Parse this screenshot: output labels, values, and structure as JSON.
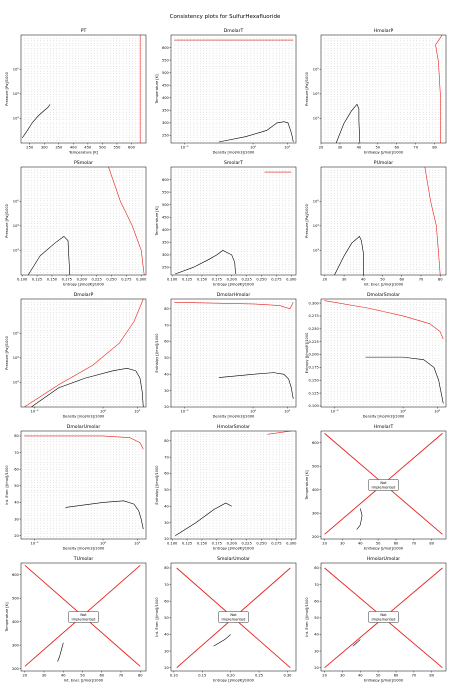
{
  "figure": {
    "title": "Consistency plots for SulfurHexafluoride"
  },
  "colors": {
    "boundary": "#e8201c",
    "grid": "#000000",
    "saturation": "#000000",
    "frame": "#000000",
    "not_implemented_box": "#ffffff"
  },
  "chart_data": [
    {
      "type": "scatter",
      "title": "PT",
      "xlabel": "Temperature [K]",
      "ylabel": "Pressure [Pa]/1000",
      "xlim": [
        220,
        650
      ],
      "ylim": [
        100,
        2500000
      ],
      "yscale": "log",
      "implemented": true,
      "xticks": [
        "250",
        "300",
        "350",
        "400",
        "450",
        "500",
        "550",
        "600"
      ],
      "yticks": [
        "10³",
        "10⁴",
        "10⁵"
      ],
      "saturation_curve": [
        [
          224,
          160
        ],
        [
          240,
          300
        ],
        [
          260,
          700
        ],
        [
          280,
          1300
        ],
        [
          300,
          2100
        ],
        [
          315,
          3000
        ],
        [
          319,
          3750
        ]
      ],
      "boundary_curve": [
        [
          630,
          100
        ],
        [
          630,
          1000
        ],
        [
          630,
          100000
        ],
        [
          630,
          2500000
        ]
      ]
    },
    {
      "type": "scatter",
      "title": "DmolarT",
      "xlabel": "Density [mol/m3]/1000",
      "ylabel": "Temperature [K]",
      "xlim": [
        0.004,
        18
      ],
      "ylim": [
        220,
        650
      ],
      "xscale": "log",
      "implemented": true,
      "xticks": [
        "10⁻²",
        "10⁰",
        "10¹"
      ],
      "yticks": [
        "250",
        "300",
        "350",
        "400",
        "450",
        "500",
        "550",
        "600"
      ],
      "saturation_curve": [
        [
          0.1,
          224
        ],
        [
          0.6,
          245
        ],
        [
          2.5,
          270
        ],
        [
          5.0,
          300
        ],
        [
          8.0,
          305
        ],
        [
          10.5,
          300
        ],
        [
          12.5,
          270
        ],
        [
          14,
          245
        ],
        [
          15,
          224
        ]
      ],
      "boundary_curve": [
        [
          0.005,
          630
        ],
        [
          1,
          630
        ],
        [
          10,
          630
        ],
        [
          15,
          630
        ]
      ]
    },
    {
      "type": "scatter",
      "title": "HmolarP",
      "xlabel": "Enthalpy [J/mol]/1000",
      "ylabel": "Pressure [Pa]/1000",
      "xlim": [
        20,
        86
      ],
      "ylim": [
        100,
        2500000
      ],
      "yscale": "log",
      "implemented": true,
      "xticks": [
        "20",
        "30",
        "40",
        "50",
        "60",
        "70",
        "80"
      ],
      "yticks": [
        "10³",
        "10⁴",
        "10⁵"
      ],
      "saturation_curve": [
        [
          28,
          100
        ],
        [
          32,
          600
        ],
        [
          36,
          2000
        ],
        [
          39,
          3750
        ],
        [
          40,
          2500
        ],
        [
          40,
          800
        ],
        [
          40.5,
          100
        ]
      ],
      "boundary_curve": [
        [
          83,
          100
        ],
        [
          83,
          10000
        ],
        [
          82,
          200000
        ],
        [
          80.5,
          1000000
        ],
        [
          84,
          2500000
        ]
      ]
    },
    {
      "type": "scatter",
      "title": "PSmolar",
      "xlabel": "Entropy [J/mol/K]/1000",
      "ylabel": "Pressure [Pa]/1000",
      "xlim": [
        0.098,
        0.308
      ],
      "ylim": [
        100,
        2500000
      ],
      "yscale": "log",
      "implemented": true,
      "xticks": [
        "0.100",
        "0.125",
        "0.150",
        "0.175",
        "0.200",
        "0.225",
        "0.250",
        "0.275",
        "0.300"
      ],
      "yticks": [
        "10³",
        "10⁴",
        "10⁵"
      ],
      "saturation_curve": [
        [
          0.11,
          100
        ],
        [
          0.13,
          600
        ],
        [
          0.155,
          2000
        ],
        [
          0.17,
          3750
        ],
        [
          0.177,
          2500
        ],
        [
          0.178,
          800
        ],
        [
          0.18,
          100
        ]
      ],
      "boundary_curve": [
        [
          0.245,
          2500000
        ],
        [
          0.265,
          100000
        ],
        [
          0.285,
          10000
        ],
        [
          0.3,
          1000
        ],
        [
          0.305,
          100
        ]
      ]
    },
    {
      "type": "scatter",
      "title": "SmolarT",
      "xlabel": "Entropy [J/mol/K]/1000",
      "ylabel": "Temperature [K]",
      "xlim": [
        0.098,
        0.308
      ],
      "ylim": [
        220,
        650
      ],
      "implemented": true,
      "xticks": [
        "0.100",
        "0.125",
        "0.150",
        "0.175",
        "0.200",
        "0.225",
        "0.250",
        "0.275",
        "0.300"
      ],
      "yticks": [
        "250",
        "300",
        "350",
        "400",
        "450",
        "500",
        "550",
        "600"
      ],
      "saturation_curve": [
        [
          0.105,
          224
        ],
        [
          0.135,
          250
        ],
        [
          0.16,
          280
        ],
        [
          0.175,
          300
        ],
        [
          0.185,
          318
        ],
        [
          0.2,
          300
        ],
        [
          0.205,
          270
        ],
        [
          0.206,
          240
        ],
        [
          0.207,
          224
        ]
      ],
      "boundary_curve": [
        [
          0.255,
          630
        ],
        [
          0.3,
          630
        ]
      ]
    },
    {
      "type": "scatter",
      "title": "PUmolar",
      "xlabel": "Int. Ener. [J/mol]/1000",
      "ylabel": "Pressure [Pa]/1000",
      "xlim": [
        18,
        83
      ],
      "ylim": [
        100,
        2500000
      ],
      "yscale": "log",
      "implemented": true,
      "xticks": [
        "20",
        "30",
        "40",
        "50",
        "60",
        "70",
        "80"
      ],
      "yticks": [
        "10³",
        "10⁴",
        "10⁵"
      ],
      "saturation_curve": [
        [
          25,
          100
        ],
        [
          30,
          600
        ],
        [
          34,
          2000
        ],
        [
          38,
          3750
        ],
        [
          39,
          2500
        ],
        [
          40,
          800
        ],
        [
          40,
          100
        ]
      ],
      "boundary_curve": [
        [
          72,
          2500000
        ],
        [
          75,
          100000
        ],
        [
          78,
          10000
        ],
        [
          79,
          1000
        ],
        [
          80,
          100
        ]
      ]
    },
    {
      "type": "scatter",
      "title": "DmolarP",
      "xlabel": "Density [mol/m3]/1000",
      "ylabel": "Pressure [Pa]/1000",
      "xlim": [
        0.004,
        18
      ],
      "ylim": [
        100,
        2500000
      ],
      "xscale": "log",
      "yscale": "log",
      "implemented": true,
      "xticks": [
        "10⁻²",
        "10⁰",
        "10¹"
      ],
      "yticks": [
        "10³",
        "10⁴",
        "10⁵"
      ],
      "saturation_curve": [
        [
          0.008,
          100
        ],
        [
          0.05,
          600
        ],
        [
          0.3,
          1500
        ],
        [
          2,
          3000
        ],
        [
          5,
          3750
        ],
        [
          9,
          3000
        ],
        [
          12,
          1500
        ],
        [
          14,
          400
        ],
        [
          15,
          100
        ]
      ],
      "boundary_curve": [
        [
          0.005,
          100
        ],
        [
          0.05,
          800
        ],
        [
          0.5,
          5000
        ],
        [
          3,
          40000
        ],
        [
          8,
          300000
        ],
        [
          15,
          2500000
        ]
      ]
    },
    {
      "type": "scatter",
      "title": "DmolarHmolar",
      "xlabel": "Density [mol/m3]/1000",
      "ylabel": "Enthalpy [J/mol]/1000",
      "xlim": [
        0.004,
        18
      ],
      "ylim": [
        20,
        86
      ],
      "xscale": "log",
      "implemented": true,
      "xticks": [
        "10⁻²",
        "10⁰",
        "10¹"
      ],
      "yticks": [
        "20",
        "30",
        "40",
        "50",
        "60",
        "70",
        "80"
      ],
      "saturation_curve": [
        [
          0.1,
          38
        ],
        [
          1,
          40
        ],
        [
          4,
          41
        ],
        [
          8,
          40
        ],
        [
          11,
          37
        ],
        [
          13,
          32
        ],
        [
          15,
          25
        ]
      ],
      "boundary_curve": [
        [
          0.005,
          84
        ],
        [
          1,
          83
        ],
        [
          6,
          82
        ],
        [
          12,
          80
        ],
        [
          15,
          84
        ]
      ]
    },
    {
      "type": "scatter",
      "title": "DmolarSmolar",
      "xlabel": "Density [mol/m3]/1000",
      "ylabel": "Entropy [J/mol/K]/1000",
      "xlim": [
        0.004,
        18
      ],
      "ylim": [
        0.098,
        0.308
      ],
      "xscale": "log",
      "implemented": true,
      "xticks": [
        "10⁻²",
        "10⁰",
        "10¹"
      ],
      "yticks": [
        "0.100",
        "0.125",
        "0.150",
        "0.175",
        "0.200",
        "0.225",
        "0.250",
        "0.275",
        "0.300"
      ],
      "saturation_curve": [
        [
          0.08,
          0.195
        ],
        [
          1,
          0.195
        ],
        [
          4,
          0.19
        ],
        [
          8,
          0.175
        ],
        [
          11,
          0.15
        ],
        [
          13,
          0.125
        ],
        [
          15,
          0.105
        ]
      ],
      "boundary_curve": [
        [
          0.005,
          0.305
        ],
        [
          0.1,
          0.29
        ],
        [
          1,
          0.275
        ],
        [
          6,
          0.26
        ],
        [
          12,
          0.245
        ],
        [
          15,
          0.23
        ]
      ]
    },
    {
      "type": "scatter",
      "title": "DmolarUmolar",
      "xlabel": "Density [mol/m3]/1000",
      "ylabel": "Int. Ener. [J/mol]/1000",
      "xlim": [
        0.004,
        18
      ],
      "ylim": [
        18,
        83
      ],
      "xscale": "log",
      "implemented": true,
      "xticks": [
        "10⁻²",
        "10⁰",
        "10¹"
      ],
      "yticks": [
        "20",
        "30",
        "40",
        "50",
        "60",
        "70",
        "80"
      ],
      "saturation_curve": [
        [
          0.08,
          37
        ],
        [
          1,
          40
        ],
        [
          4,
          41
        ],
        [
          8,
          39
        ],
        [
          11,
          35
        ],
        [
          13,
          30
        ],
        [
          15,
          24
        ]
      ],
      "boundary_curve": [
        [
          0.005,
          80
        ],
        [
          1,
          80
        ],
        [
          6,
          79
        ],
        [
          12,
          76
        ],
        [
          15,
          72
        ]
      ]
    },
    {
      "type": "scatter",
      "title": "HmolarSmolar",
      "xlabel": "Entropy [J/mol/K]/1000",
      "ylabel": "Enthalpy [J/mol]/1000",
      "xlim": [
        0.098,
        0.308
      ],
      "ylim": [
        20,
        86
      ],
      "implemented": true,
      "xticks": [
        "0.100",
        "0.125",
        "0.150",
        "0.175",
        "0.200",
        "0.225",
        "0.250",
        "0.275",
        "0.300"
      ],
      "yticks": [
        "20",
        "30",
        "40",
        "50",
        "60",
        "70",
        "80"
      ],
      "saturation_curve": [
        [
          0.105,
          22
        ],
        [
          0.14,
          30
        ],
        [
          0.17,
          38
        ],
        [
          0.19,
          42
        ],
        [
          0.2,
          40
        ]
      ],
      "boundary_curve": [
        [
          0.26,
          84
        ],
        [
          0.3,
          86
        ]
      ]
    },
    {
      "type": "scatter",
      "title": "HmolarT",
      "xlabel": "Enthalpy [J/mol]/1000",
      "ylabel": "Temperature [K]",
      "xlim": [
        18,
        88
      ],
      "ylim": [
        190,
        650
      ],
      "implemented": false,
      "status_text": "Not\nImplemented",
      "xticks": [
        "20",
        "30",
        "40",
        "50",
        "60",
        "70",
        "80"
      ],
      "yticks": [
        "200",
        "300",
        "400",
        "500",
        "600"
      ],
      "saturation_curve": [
        [
          40,
          320
        ],
        [
          41,
          290
        ],
        [
          40,
          250
        ],
        [
          38,
          230
        ]
      ],
      "boundary_curve": [
        [
          20,
          640
        ],
        [
          86,
          210
        ]
      ],
      "boundary_curve_2": [
        [
          20,
          210
        ],
        [
          86,
          640
        ]
      ]
    },
    {
      "type": "scatter",
      "title": "TUmolar",
      "xlabel": "Int. Ener. [J/mol]/1000",
      "ylabel": "Temperature [K]",
      "xlim": [
        18,
        83
      ],
      "ylim": [
        190,
        650
      ],
      "implemented": false,
      "status_text": "Not\nImplemented",
      "xticks": [
        "20",
        "30",
        "40",
        "50",
        "60",
        "70",
        "80"
      ],
      "yticks": [
        "200",
        "300",
        "400",
        "500",
        "600"
      ],
      "saturation_curve": [
        [
          40,
          310
        ],
        [
          39,
          280
        ],
        [
          38,
          250
        ],
        [
          37,
          230
        ]
      ],
      "boundary_curve": [
        [
          20,
          640
        ],
        [
          80,
          210
        ]
      ],
      "boundary_curve_2": [
        [
          20,
          210
        ],
        [
          80,
          640
        ]
      ]
    },
    {
      "type": "scatter",
      "title": "SmolarUmolar",
      "xlabel": "Entropy [J/mol/K]/1000",
      "ylabel": "Int. Ener. [J/mol]/1000",
      "xlim": [
        0.095,
        0.315
      ],
      "ylim": [
        18,
        83
      ],
      "implemented": false,
      "status_text": "Not\nImplemented",
      "xticks": [
        "0.10",
        "0.15",
        "0.20",
        "0.25",
        "0.30"
      ],
      "yticks": [
        "20",
        "30",
        "40",
        "50",
        "60",
        "70",
        "80"
      ],
      "saturation_curve": [
        [
          0.2,
          40
        ],
        [
          0.19,
          37
        ],
        [
          0.17,
          33
        ]
      ],
      "boundary_curve": [
        [
          0.105,
          80
        ],
        [
          0.305,
          20
        ]
      ],
      "boundary_curve_2": [
        [
          0.105,
          20
        ],
        [
          0.305,
          80
        ]
      ]
    },
    {
      "type": "scatter",
      "title": "HmolarUmolar",
      "xlabel": "Enthalpy [J/mol]/1000",
      "ylabel": "Int. Ener. [J/mol]/1000",
      "xlim": [
        18,
        88
      ],
      "ylim": [
        18,
        83
      ],
      "implemented": false,
      "status_text": "Not\nImplemented",
      "xticks": [
        "20",
        "30",
        "40",
        "50",
        "60",
        "70",
        "80"
      ],
      "yticks": [
        "20",
        "30",
        "40",
        "50",
        "60",
        "70",
        "80"
      ],
      "saturation_curve": [
        [
          40,
          37
        ],
        [
          38,
          35
        ],
        [
          36,
          33
        ]
      ],
      "boundary_curve": [
        [
          20,
          80
        ],
        [
          86,
          20
        ]
      ],
      "boundary_curve_2": [
        [
          20,
          20
        ],
        [
          86,
          80
        ]
      ]
    }
  ]
}
